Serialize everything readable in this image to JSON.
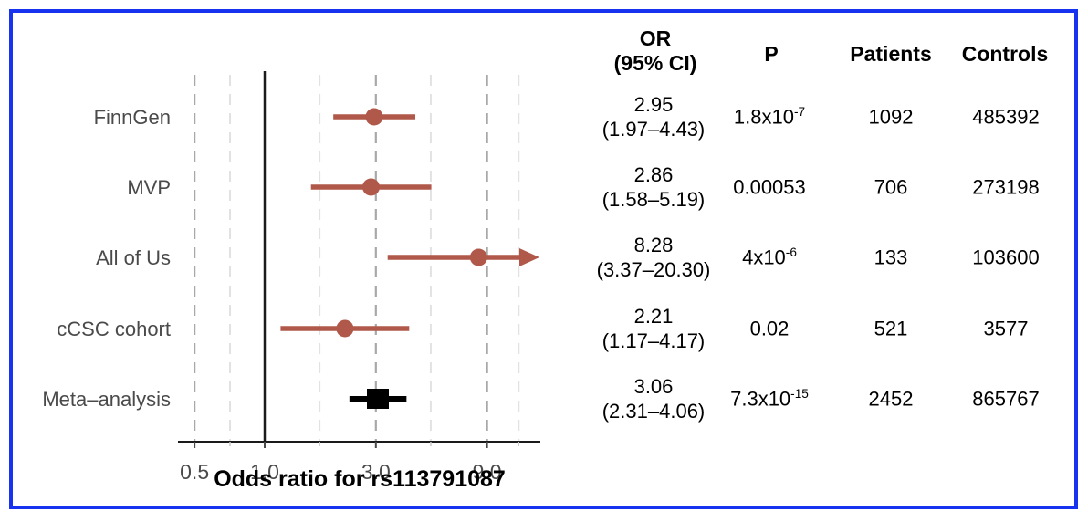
{
  "figure": {
    "border_color": "#1733f0",
    "accent_color": "#b0584a",
    "meta_color": "#000000",
    "label_color": "#4a4a4a",
    "grid_color": "#a8a8a8",
    "minor_grid_color": "#e2e2e2",
    "axis_color": "#1a1a1a"
  },
  "chart_data": {
    "type": "scatter",
    "subtype": "forest-plot",
    "title": "",
    "xlabel": "Odds ratio for rs113791087",
    "x_scale": "log10",
    "xlim": [
      0.42,
      15.2
    ],
    "x_ticks": [
      0.5,
      1.0,
      3.0,
      9.0
    ],
    "x_tick_labels": [
      "0.5",
      "1.0",
      "3.0",
      "9.0"
    ],
    "dashed_gridlines": [
      0.5,
      3.0,
      9.0
    ],
    "minor_gridlines": [
      0.71,
      1.72,
      5.16,
      12.3
    ],
    "reference_line": 1.0,
    "series": [
      {
        "name": "FinnGen",
        "or": 2.95,
        "ci_low": 1.97,
        "ci_high": 4.43,
        "marker": "circle",
        "ci_exceeds_axis": false
      },
      {
        "name": "MVP",
        "or": 2.86,
        "ci_low": 1.58,
        "ci_high": 5.19,
        "marker": "circle",
        "ci_exceeds_axis": false
      },
      {
        "name": "All of Us",
        "or": 8.28,
        "ci_low": 3.37,
        "ci_high": 20.3,
        "marker": "circle",
        "ci_exceeds_axis": true
      },
      {
        "name": "cCSC cohort",
        "or": 2.21,
        "ci_low": 1.17,
        "ci_high": 4.17,
        "marker": "circle",
        "ci_exceeds_axis": false
      },
      {
        "name": "Meta–analysis",
        "or": 3.06,
        "ci_low": 2.31,
        "ci_high": 4.06,
        "marker": "square",
        "ci_exceeds_axis": false
      }
    ]
  },
  "table": {
    "headers": {
      "or_line1": "OR",
      "or_line2": "(95% CI)",
      "p": "P",
      "patients": "Patients",
      "controls": "Controls"
    },
    "rows": [
      {
        "or": "2.95",
        "ci": "(1.97–4.43)",
        "p_base": "1.8x10",
        "p_exp": "-7",
        "patients": "1092",
        "controls": "485392"
      },
      {
        "or": "2.86",
        "ci": "(1.58–5.19)",
        "p_base": "0.00053",
        "p_exp": "",
        "patients": "706",
        "controls": "273198"
      },
      {
        "or": "8.28",
        "ci": "(3.37–20.30)",
        "p_base": "4x10",
        "p_exp": "-6",
        "patients": "133",
        "controls": "103600"
      },
      {
        "or": "2.21",
        "ci": "(1.17–4.17)",
        "p_base": "0.02",
        "p_exp": "",
        "patients": "521",
        "controls": "3577"
      },
      {
        "or": "3.06",
        "ci": "(2.31–4.06)",
        "p_base": "7.3x10",
        "p_exp": "-15",
        "patients": "2452",
        "controls": "865767"
      }
    ]
  }
}
